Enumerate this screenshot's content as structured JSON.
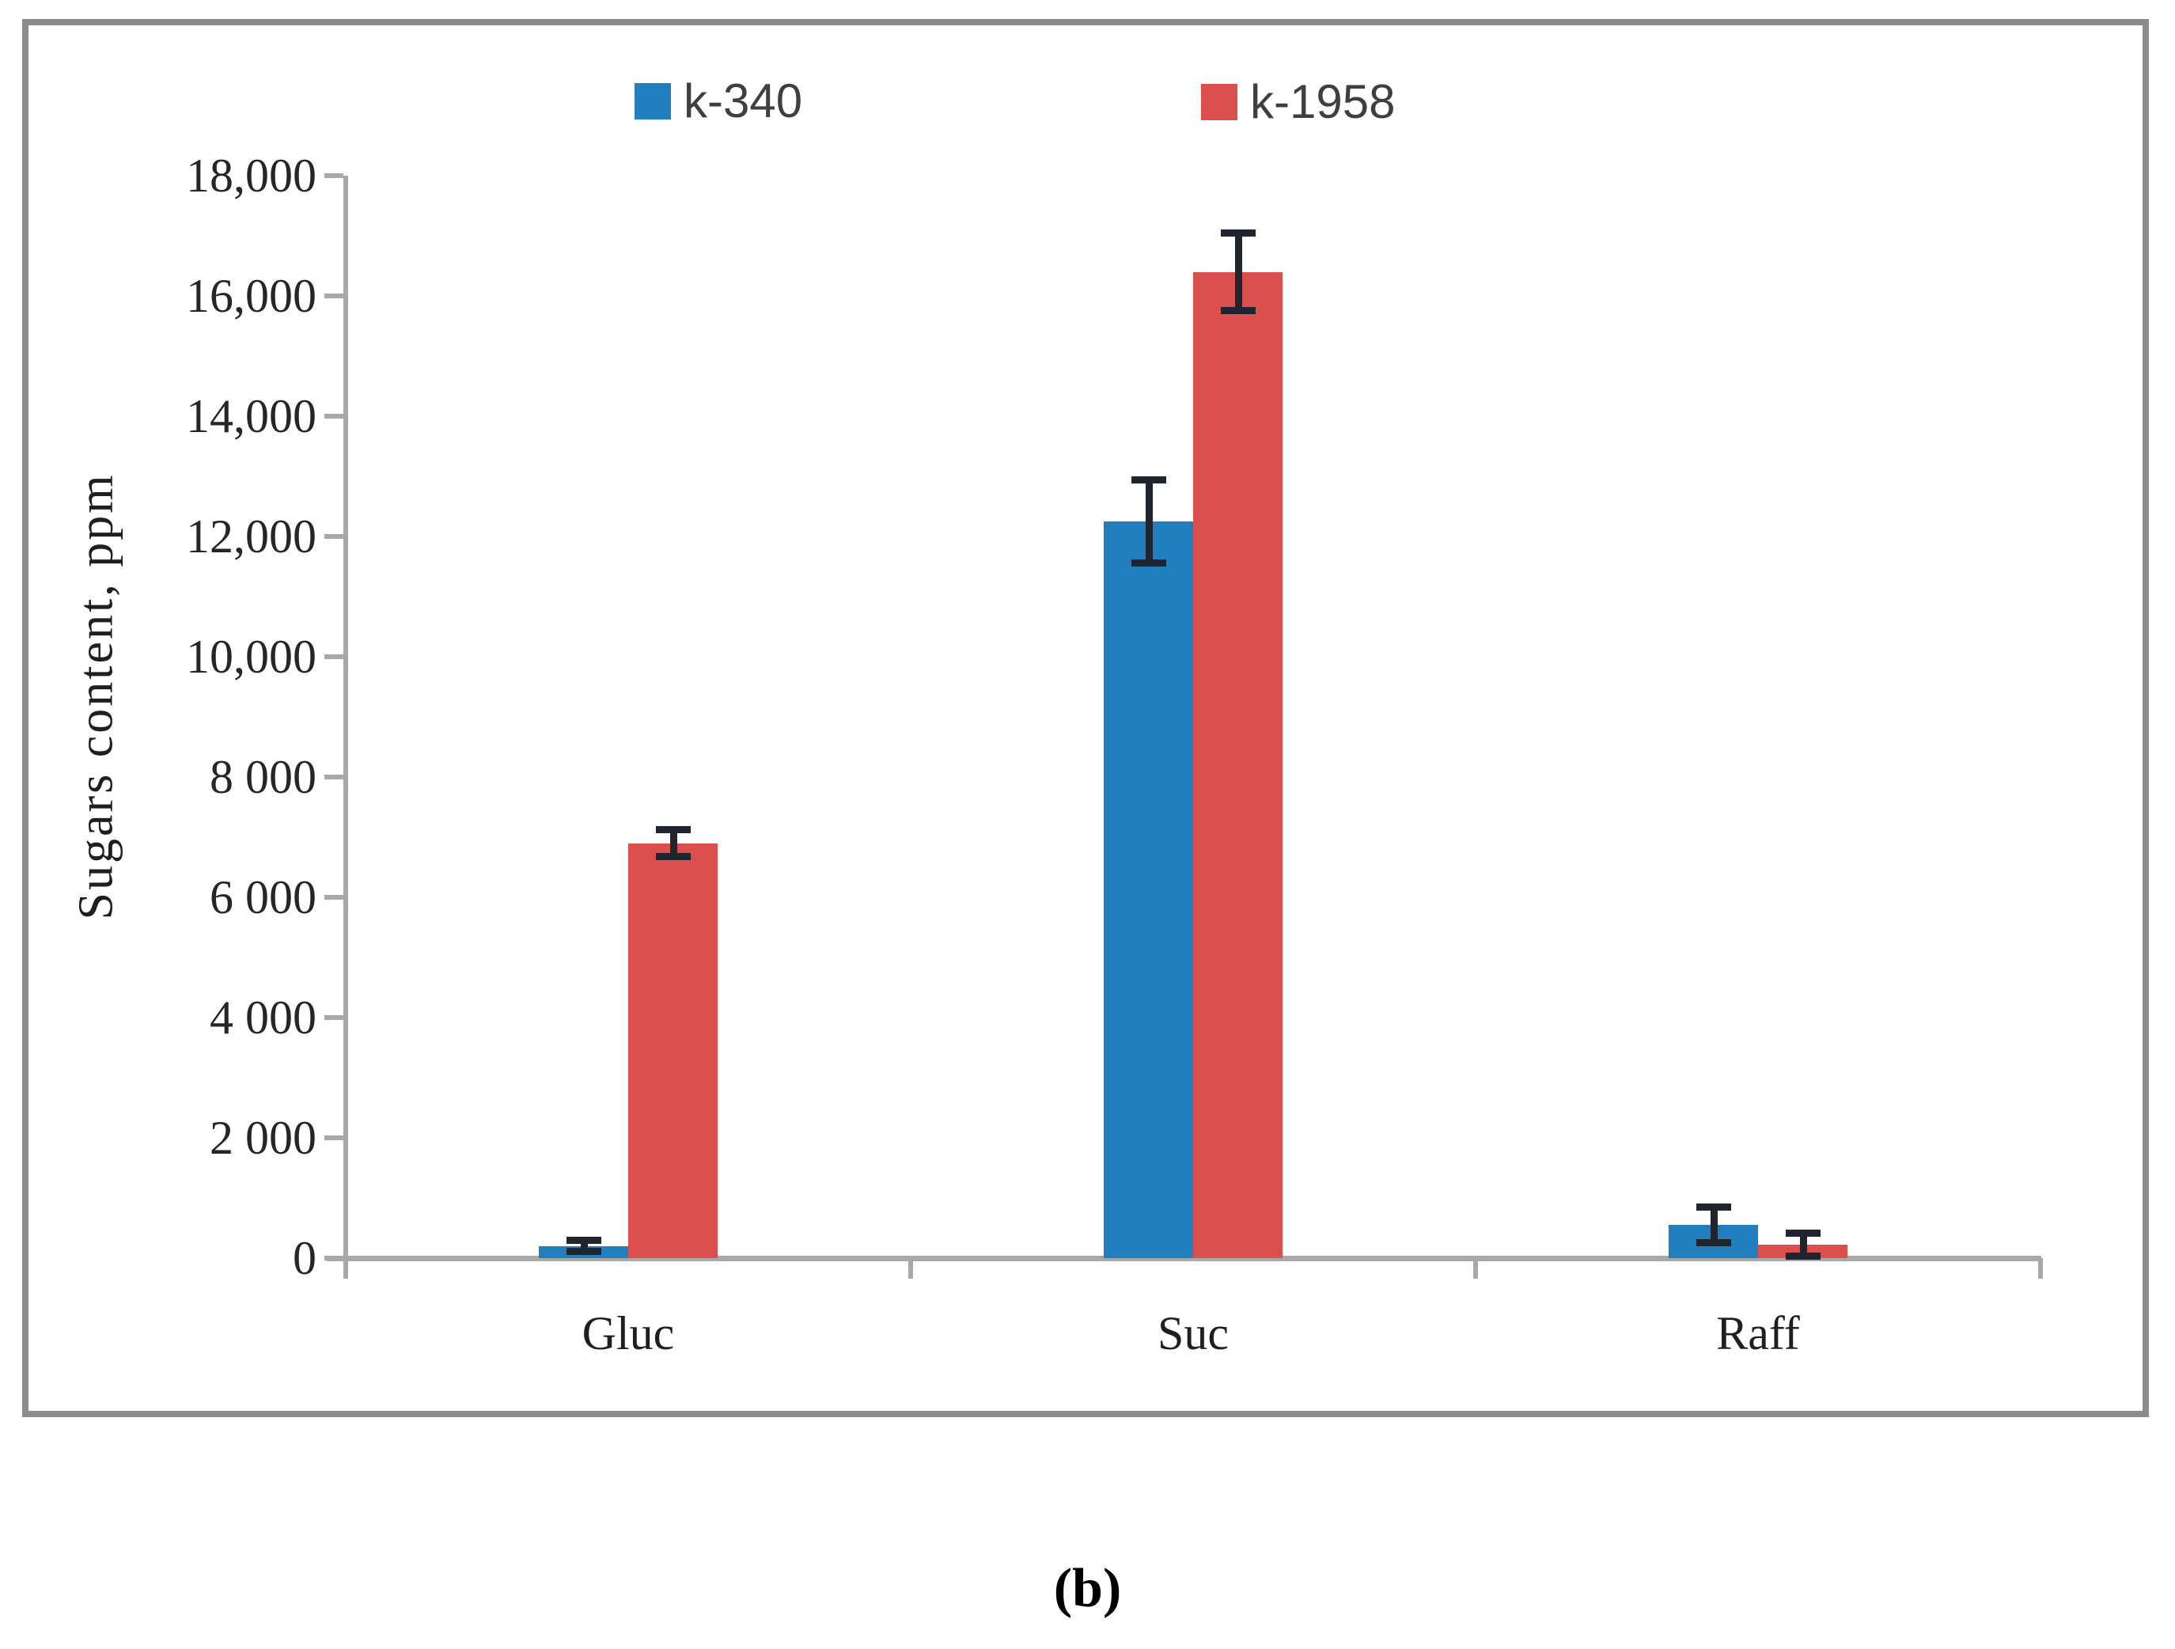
{
  "caption": "(b)",
  "legend": [
    {
      "label": "k-340",
      "color": "#237EBE"
    },
    {
      "label": "k-1958",
      "color": "#D9504E"
    }
  ],
  "colors": {
    "series_blue": "#237EBE",
    "series_red": "#D9504E",
    "axis_line": "#A8A8A8",
    "frame_border": "#8C8C8C",
    "error_bar": "#20242E",
    "tick_text": "#262626",
    "legend_text": "#3F3F3F"
  },
  "chart_data": {
    "type": "bar",
    "title": "",
    "categories": [
      "Gluc",
      "Suc",
      "Raff"
    ],
    "series": [
      {
        "name": "k-340",
        "color": "#237EBE",
        "values": [
          200,
          12250,
          550
        ],
        "errors": [
          100,
          700,
          300
        ]
      },
      {
        "name": "k-1958",
        "color": "#D9504E",
        "values": [
          6900,
          16400,
          220
        ],
        "errors": [
          230,
          650,
          200
        ]
      }
    ],
    "y_axis": {
      "title": "Sugars content, ppm",
      "min": 0,
      "max": 18000,
      "tick_step": 2000,
      "tick_labels": [
        "0",
        "2 000",
        "4 000",
        "6 000",
        "8 000",
        "10,000",
        "12,000",
        "14,000",
        "16,000",
        "18,000"
      ]
    },
    "x_axis": {
      "label": ""
    },
    "grid": false,
    "error_bars": true,
    "legend_position": "top"
  }
}
